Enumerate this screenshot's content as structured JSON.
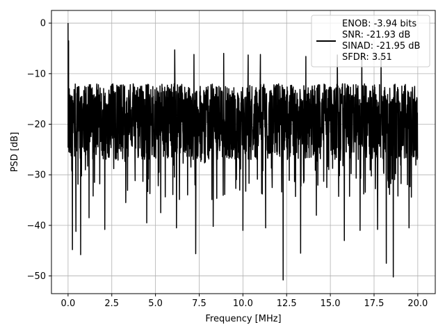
{
  "chart_data": {
    "type": "line",
    "xlabel": "Frequency [MHz]",
    "ylabel": "PSD [dB]",
    "xlim": [
      -0.95,
      21.0
    ],
    "ylim": [
      -53.5,
      2.5
    ],
    "x_ticks": [
      0.0,
      2.5,
      5.0,
      7.5,
      10.0,
      12.5,
      15.0,
      17.5,
      20.0
    ],
    "x_tick_labels": [
      "0.0",
      "2.5",
      "5.0",
      "7.5",
      "10.0",
      "12.5",
      "15.0",
      "17.5",
      "20.0"
    ],
    "y_ticks": [
      0,
      -10,
      -20,
      -30,
      -40,
      -50
    ],
    "y_tick_labels": [
      "0",
      "−10",
      "−20",
      "−30",
      "−40",
      "−50"
    ],
    "grid": true,
    "legend_position": "upper-right",
    "series_color": "#000000",
    "series": [
      {
        "legend_lines": [
          "ENOB: -3.94 bits",
          "SNR: -21.93 dB",
          "SINAD: -21.95 dB",
          "SFDR: 3.51"
        ],
        "x_range": [
          0,
          20
        ],
        "peak": {
          "x": 0.0,
          "y": 0.0
        },
        "noise_floor": {
          "typical_min": -27,
          "typical_max": -12,
          "mean": -19
        },
        "deep_dips": [
          {
            "x": 0.25,
            "y": -44.8
          },
          {
            "x": 0.45,
            "y": -41.2
          },
          {
            "x": 0.72,
            "y": -45.8
          },
          {
            "x": 1.2,
            "y": -38.5
          },
          {
            "x": 2.1,
            "y": -40.8
          },
          {
            "x": 3.3,
            "y": -35.5
          },
          {
            "x": 4.5,
            "y": -39.5
          },
          {
            "x": 5.3,
            "y": -37.5
          },
          {
            "x": 6.2,
            "y": -40.5
          },
          {
            "x": 7.3,
            "y": -45.6
          },
          {
            "x": 8.3,
            "y": -40.2
          },
          {
            "x": 10.0,
            "y": -41.0
          },
          {
            "x": 11.3,
            "y": -40.5
          },
          {
            "x": 12.3,
            "y": -50.8
          },
          {
            "x": 13.3,
            "y": -45.5
          },
          {
            "x": 14.2,
            "y": -38.0
          },
          {
            "x": 15.8,
            "y": -43.0
          },
          {
            "x": 16.7,
            "y": -41.0
          },
          {
            "x": 17.7,
            "y": -40.8
          },
          {
            "x": 18.2,
            "y": -47.5
          },
          {
            "x": 18.6,
            "y": -50.2
          },
          {
            "x": 19.5,
            "y": -40.5
          }
        ],
        "high_peaks": [
          {
            "x": 6.1,
            "y": -5.3
          },
          {
            "x": 7.2,
            "y": -6.2
          },
          {
            "x": 8.9,
            "y": -6.0
          },
          {
            "x": 10.3,
            "y": -6.3
          },
          {
            "x": 11.0,
            "y": -6.2
          },
          {
            "x": 13.6,
            "y": -6.6
          },
          {
            "x": 15.4,
            "y": -6.3
          },
          {
            "x": 16.8,
            "y": -5.8
          },
          {
            "x": 17.9,
            "y": -6.7
          }
        ]
      }
    ]
  }
}
